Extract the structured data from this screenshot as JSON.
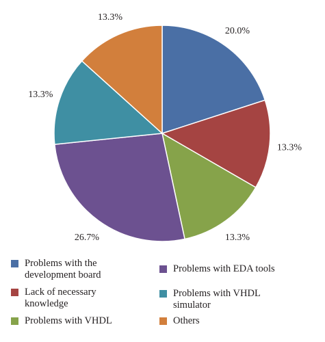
{
  "chart_data": {
    "type": "pie",
    "title": "",
    "start_angle_deg": 0,
    "direction": "clockwise",
    "slices": [
      {
        "label": "Problems with the development board",
        "legend_text": "Problems with the\ndevelopment board",
        "value": 20.0,
        "value_label": "20.0%",
        "color": "#4a6fa5"
      },
      {
        "label": "Lack of necessary knowledge",
        "legend_text": "Lack of necessary\nknowledge",
        "value": 13.3,
        "value_label": "13.3%",
        "color": "#a54442"
      },
      {
        "label": "Problems with VHDL",
        "legend_text": "Problems with VHDL",
        "value": 13.3,
        "value_label": "13.3%",
        "color": "#86a34a"
      },
      {
        "label": "Problems with EDA tools",
        "legend_text": "Problems with EDA tools",
        "value": 26.7,
        "value_label": "26.7%",
        "color": "#6c5190"
      },
      {
        "label": "Problems with VHDL simulator",
        "legend_text": "Problems with VHDL\nsimulator",
        "value": 13.3,
        "value_label": "13.3%",
        "color": "#3f8fa3"
      },
      {
        "label": "Others",
        "legend_text": "Others",
        "value": 13.3,
        "value_label": "13.3%",
        "color": "#d27f3c"
      }
    ],
    "legend_placement": "bottom"
  }
}
